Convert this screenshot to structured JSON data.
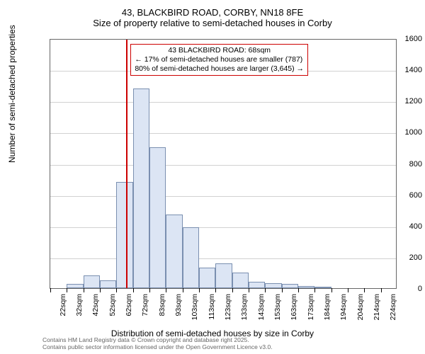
{
  "title": {
    "line1": "43, BLACKBIRD ROAD, CORBY, NN18 8FE",
    "line2": "Size of property relative to semi-detached houses in Corby"
  },
  "ylabel": "Number of semi-detached properties",
  "xlabel": "Distribution of semi-detached houses by size in Corby",
  "footer": {
    "line1": "Contains HM Land Registry data © Crown copyright and database right 2025.",
    "line2": "Contains public sector information licensed under the Open Government Licence v3.0."
  },
  "chart": {
    "type": "histogram",
    "ylim": [
      0,
      1600
    ],
    "ytick_step": 200,
    "background_color": "#ffffff",
    "grid_color": "#666666",
    "bar_fill": "#dce5f4",
    "bar_stroke": "#7a8fb0",
    "marker_color": "#cc0000",
    "xcategories": [
      "22sqm",
      "32sqm",
      "42sqm",
      "52sqm",
      "62sqm",
      "72sqm",
      "83sqm",
      "93sqm",
      "103sqm",
      "113sqm",
      "123sqm",
      "133sqm",
      "143sqm",
      "153sqm",
      "163sqm",
      "173sqm",
      "184sqm",
      "194sqm",
      "204sqm",
      "214sqm",
      "224sqm"
    ],
    "values": [
      0,
      25,
      80,
      50,
      680,
      1280,
      900,
      470,
      390,
      130,
      160,
      100,
      40,
      30,
      25,
      15,
      10,
      0,
      0,
      0,
      0
    ],
    "marker_index": 4.6
  },
  "annotation": {
    "line1": "43 BLACKBIRD ROAD: 68sqm",
    "line2": "← 17% of semi-detached houses are smaller (787)",
    "line3": "80% of semi-detached houses are larger (3,645) →"
  }
}
